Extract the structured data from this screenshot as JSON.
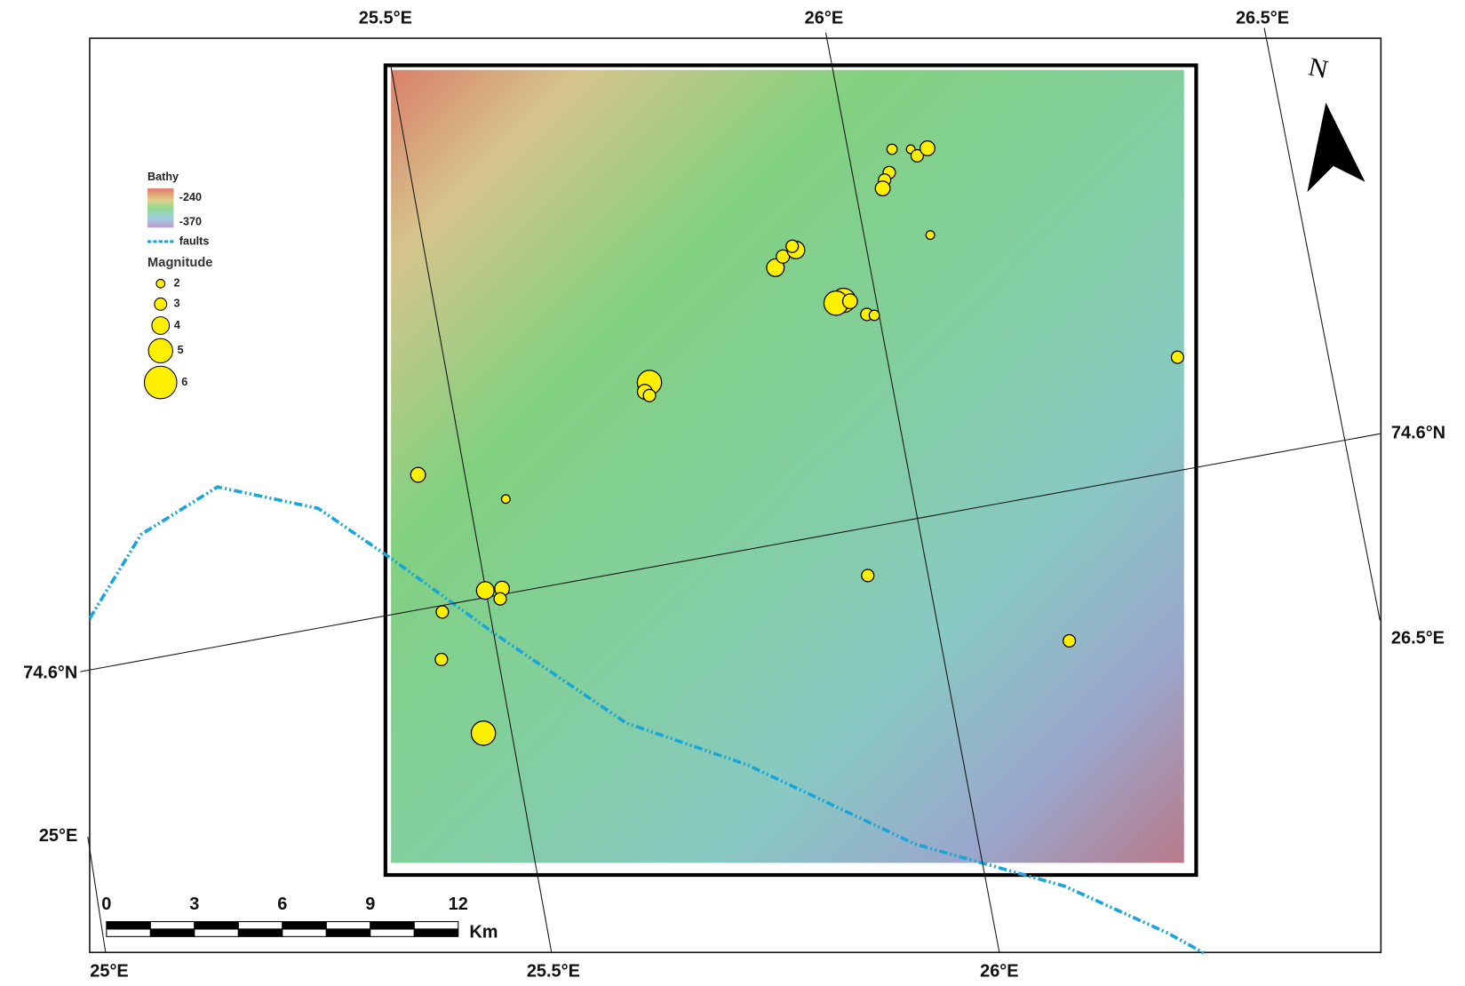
{
  "map": {
    "graticule": {
      "lon_top": [
        "25.5°E",
        "26°E",
        "26.5°E"
      ],
      "lon_bottom": [
        "25°E",
        "25.5°E",
        "26°E"
      ],
      "lat_left": "74.6°N",
      "lat_right": "74.6°N",
      "lon_left": "25°E",
      "lon_right": "26.5°E"
    },
    "north": "N",
    "legend": {
      "bathy_title": "Bathy",
      "bathy_max": "-240",
      "bathy_min": "-370",
      "faults": "faults",
      "magnitude_title": "Magnitude",
      "magnitudes": [
        2,
        3,
        4,
        5,
        6
      ]
    },
    "scale_bar": {
      "ticks": [
        0,
        3,
        6,
        9,
        12
      ],
      "unit": "Km"
    },
    "events": {
      "magnitudes": [
        2.5,
        2,
        3,
        3.5,
        3,
        3,
        3.5,
        2,
        4,
        3.2,
        4,
        3,
        5,
        5,
        3.5,
        3,
        2.5,
        5,
        3.5,
        3,
        3,
        3.5,
        2,
        4,
        3.5,
        3,
        3,
        3,
        3,
        3,
        5
      ]
    }
  }
}
